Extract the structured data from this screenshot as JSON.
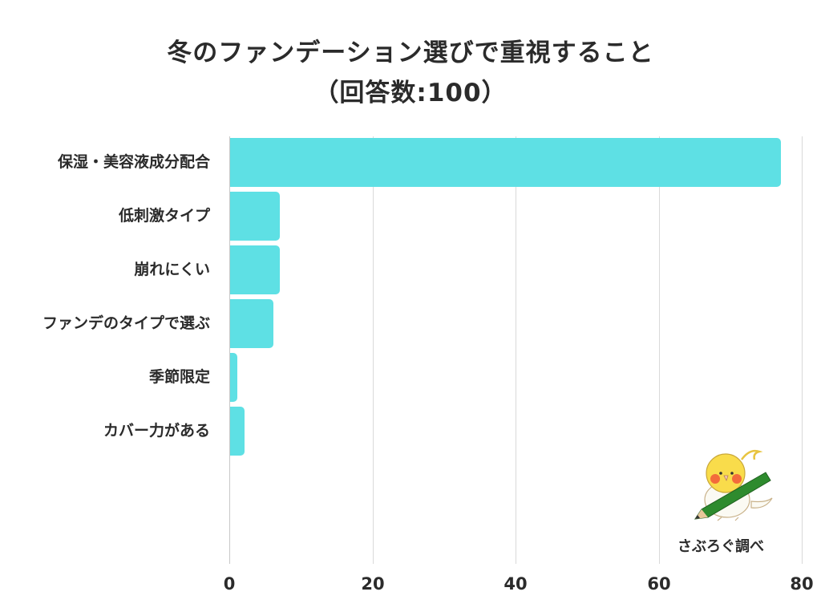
{
  "title": {
    "line1": "冬のファンデーション選びで重視すること",
    "line2": "（回答数:100）"
  },
  "colors": {
    "bar": "#5ee0e4",
    "text": "#2b2b2b",
    "grid": "#d9d9d9"
  },
  "credit": "さぶろぐ調べ",
  "chart_data": {
    "type": "bar",
    "orientation": "horizontal",
    "title": "冬のファンデーション選びで重視すること（回答数:100）",
    "categories": [
      "保湿・美容液成分配合",
      "低刺激タイプ",
      "崩れにくい",
      "ファンデのタイプで選ぶ",
      "季節限定",
      "カバー力がある"
    ],
    "values": [
      77,
      7,
      7,
      6,
      1,
      2
    ],
    "xlabel": "",
    "ylabel": "",
    "xlim": [
      0,
      80
    ],
    "xticks": [
      "0",
      "20",
      "40",
      "60",
      "80"
    ],
    "grid": true,
    "legend": null
  }
}
